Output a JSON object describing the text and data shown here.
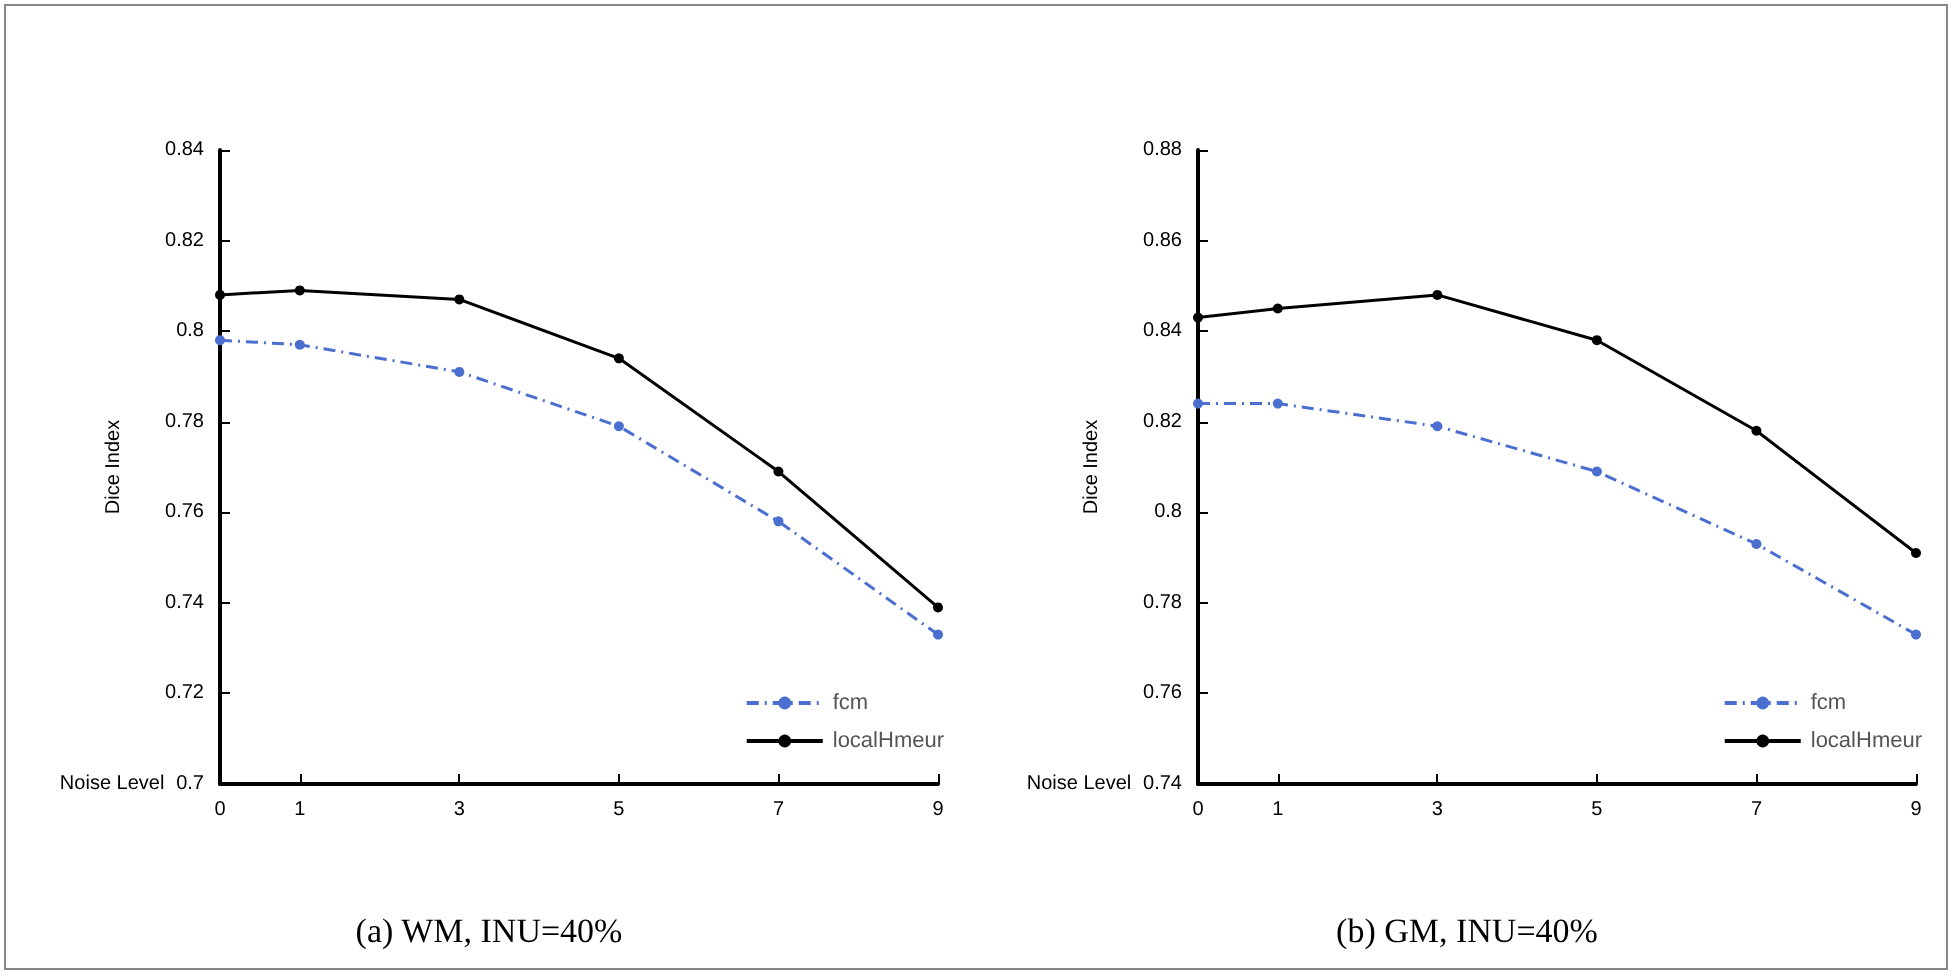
{
  "chart_data": [
    {
      "type": "line",
      "title": "(a) WM, INU=40%",
      "xlabel": "Noise Level",
      "ylabel": "Dice Index",
      "x": [
        0,
        1,
        3,
        5,
        7,
        9
      ],
      "xlim": [
        0,
        9
      ],
      "xticks": [
        0,
        1,
        3,
        5,
        7,
        9
      ],
      "ylim": [
        0.7,
        0.84
      ],
      "yticks": [
        0.7,
        0.72,
        0.74,
        0.76,
        0.78,
        0.8,
        0.82,
        0.84
      ],
      "legend": "bottom right",
      "marker": "circle",
      "series": [
        {
          "name": "fcm",
          "color": "#4a6fd0",
          "line_style": "dashed",
          "values": [
            0.798,
            0.797,
            0.791,
            0.779,
            0.758,
            0.733
          ]
        },
        {
          "name": "localHmeur",
          "color": "#000000",
          "line_style": "solid",
          "values": [
            0.808,
            0.809,
            0.807,
            0.794,
            0.769,
            0.739
          ]
        }
      ]
    },
    {
      "type": "line",
      "title": "(b) GM, INU=40%",
      "xlabel": "Noise Level",
      "ylabel": "Dice Index",
      "x": [
        0,
        1,
        3,
        5,
        7,
        9
      ],
      "xlim": [
        0,
        9
      ],
      "xticks": [
        0,
        1,
        3,
        5,
        7,
        9
      ],
      "ylim": [
        0.74,
        0.88
      ],
      "yticks": [
        0.74,
        0.76,
        0.78,
        0.8,
        0.82,
        0.84,
        0.86,
        0.88
      ],
      "legend": "bottom right",
      "marker": "circle",
      "series": [
        {
          "name": "fcm",
          "color": "#4a6fd0",
          "line_style": "dashed",
          "values": [
            0.824,
            0.824,
            0.819,
            0.809,
            0.793,
            0.773
          ]
        },
        {
          "name": "localHmeur",
          "color": "#000000",
          "line_style": "solid",
          "values": [
            0.843,
            0.845,
            0.848,
            0.838,
            0.818,
            0.791
          ]
        }
      ]
    }
  ]
}
